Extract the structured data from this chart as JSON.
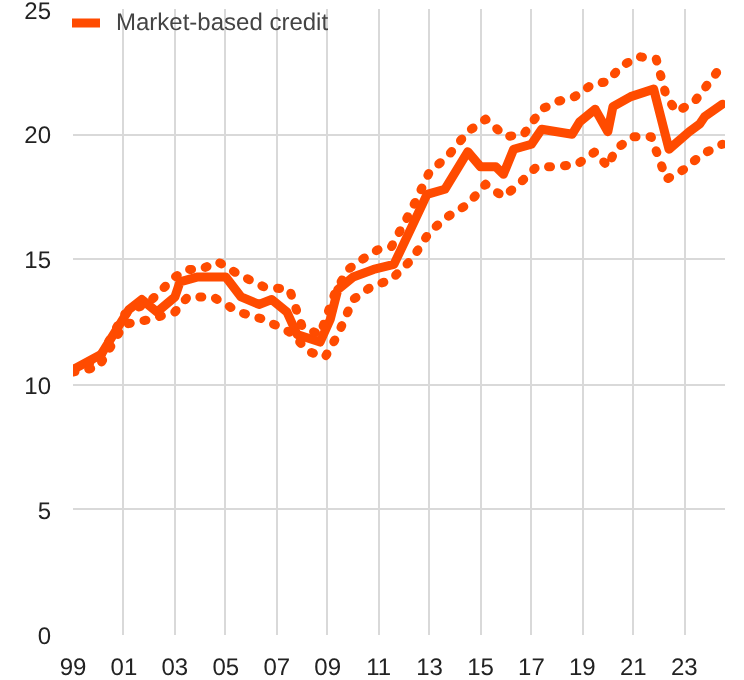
{
  "chart_data": {
    "type": "line",
    "series": [
      {
        "name": "Market-based credit",
        "color": "#ff4b00",
        "line_style": "solid",
        "x": [
          1999,
          2000.1,
          2001.2,
          2001.7,
          2002.3,
          2003,
          2003.2,
          2003.9,
          2005,
          2005.6,
          2006.3,
          2006.8,
          2007.4,
          2007.8,
          2008.7,
          2009.1,
          2009.4,
          2010,
          2010.8,
          2011.6,
          2012.3,
          2012.9,
          2013.6,
          2014.5,
          2015,
          2015.6,
          2015.9,
          2016.3,
          2017,
          2017.4,
          2018.6,
          2018.9,
          2019.5,
          2020,
          2020.2,
          2020.9,
          2021.8,
          2022.4,
          2023.2,
          2023.6,
          2023.8,
          2024.5
        ],
        "values": [
          10.6,
          11.2,
          13.0,
          13.4,
          12.9,
          13.5,
          14.1,
          14.3,
          14.3,
          13.5,
          13.2,
          13.4,
          12.9,
          12.0,
          11.7,
          12.6,
          13.8,
          14.3,
          14.6,
          14.8,
          16.3,
          17.6,
          17.8,
          19.3,
          18.7,
          18.7,
          18.4,
          19.4,
          19.6,
          20.2,
          20.0,
          20.5,
          21.0,
          20.1,
          21.1,
          21.5,
          21.8,
          19.4,
          20.1,
          20.4,
          20.7,
          21.2
        ]
      },
      {
        "color": "#ff4b00",
        "line_style": "dotted",
        "x": [
          1999,
          2000,
          2001,
          2002,
          2003,
          2003.5,
          2004,
          2004.7,
          2005.5,
          2006.5,
          2007.5,
          2008,
          2008.7,
          2009.3,
          2009.8,
          2010.5,
          2011,
          2011.5,
          2012.3,
          2013,
          2013.7,
          2014.5,
          2015.2,
          2016,
          2016.7,
          2017.4,
          2018,
          2018.7,
          2019.4,
          2020,
          2020.5,
          2021.2,
          2021.9,
          2022.3,
          2022.7,
          2023.4,
          2024.3,
          2024.6
        ],
        "values": [
          10.6,
          11.0,
          12.8,
          13.3,
          14.3,
          14.6,
          14.6,
          14.9,
          14.4,
          13.9,
          13.8,
          12.3,
          12.0,
          13.7,
          14.6,
          15.1,
          15.4,
          15.5,
          17.0,
          18.5,
          19.1,
          20.1,
          20.6,
          19.9,
          20.0,
          21.0,
          21.3,
          21.5,
          22.0,
          22.1,
          22.7,
          23.1,
          23.0,
          21.5,
          20.9,
          21.3,
          22.5,
          22.4
        ]
      },
      {
        "color": "#ff4b00",
        "line_style": "dotted",
        "x": [
          1999,
          2000,
          2001,
          2002,
          2003,
          2003.5,
          2004.5,
          2005.5,
          2006.5,
          2007.5,
          2008.3,
          2008.9,
          2009.4,
          2010,
          2010.7,
          2011.5,
          2012.3,
          2013,
          2013.7,
          2014.5,
          2015.2,
          2015.9,
          2016.5,
          2017.2,
          2018,
          2018.8,
          2019.5,
          2020,
          2020.3,
          2021,
          2021.7,
          2022.3,
          2023,
          2023.7,
          2024.5
        ],
        "values": [
          10.5,
          10.7,
          12.4,
          12.6,
          12.9,
          13.5,
          13.5,
          12.9,
          12.6,
          12.1,
          11.3,
          11.1,
          12.0,
          13.4,
          13.9,
          14.2,
          15.0,
          16.1,
          16.7,
          17.2,
          18.0,
          17.5,
          18.0,
          18.7,
          18.7,
          18.8,
          19.3,
          18.7,
          19.4,
          19.9,
          19.9,
          18.2,
          18.6,
          19.2,
          19.6
        ]
      }
    ],
    "xlim": [
      1999,
      2024.6
    ],
    "xticks": [
      {
        "value": 1999,
        "label": "99"
      },
      {
        "value": 2001,
        "label": "01"
      },
      {
        "value": 2003,
        "label": "03"
      },
      {
        "value": 2005,
        "label": "05"
      },
      {
        "value": 2007,
        "label": "07"
      },
      {
        "value": 2009,
        "label": "09"
      },
      {
        "value": 2011,
        "label": "11"
      },
      {
        "value": 2013,
        "label": "13"
      },
      {
        "value": 2015,
        "label": "15"
      },
      {
        "value": 2017,
        "label": "17"
      },
      {
        "value": 2019,
        "label": "19"
      },
      {
        "value": 2021,
        "label": "21"
      },
      {
        "value": 2023,
        "label": "23"
      }
    ],
    "ylim": [
      0,
      25
    ],
    "yticks": [
      0,
      5,
      10,
      15,
      20,
      25
    ],
    "grid": true,
    "legend": "top left",
    "marker": "none"
  }
}
